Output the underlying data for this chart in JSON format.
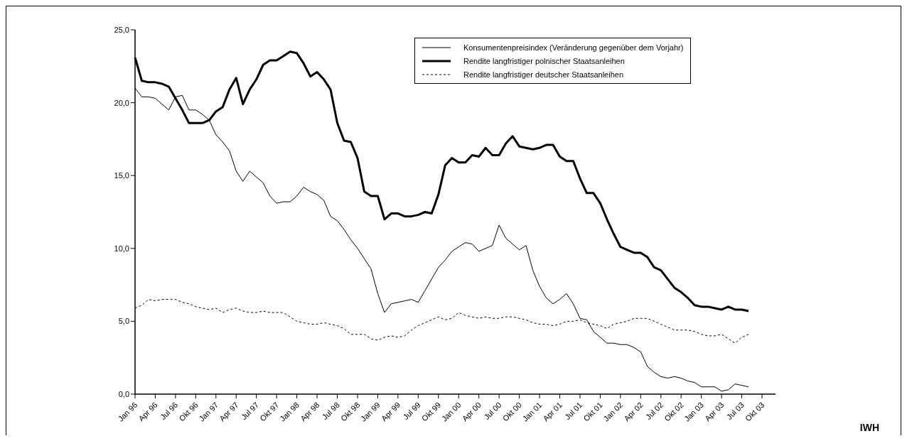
{
  "chart_data": {
    "type": "line",
    "categories": [
      "Jan 96",
      null,
      null,
      "Apr 96",
      null,
      null,
      "Jul 96",
      null,
      null,
      "Okt 96",
      null,
      null,
      "Jan 97",
      null,
      null,
      "Apr 97",
      null,
      null,
      "Jul 97",
      null,
      null,
      "Okt 97",
      null,
      null,
      "Jan 98",
      null,
      null,
      "Apr 98",
      null,
      null,
      "Jul 98",
      null,
      null,
      "Okt 98",
      null,
      null,
      "Jan 99",
      null,
      null,
      "Apr 99",
      null,
      null,
      "Jul 99",
      null,
      null,
      "Okt 99",
      null,
      null,
      "Jan 00",
      null,
      null,
      "Apr 00",
      null,
      null,
      "Jul 00",
      null,
      null,
      "Okt 00",
      null,
      null,
      "Jan 01",
      null,
      null,
      "Apr 01",
      null,
      null,
      "Jul 01",
      null,
      null,
      "Okt 01",
      null,
      null,
      "Jan 02",
      null,
      null,
      "Apr 02",
      null,
      null,
      "Jul 02",
      null,
      null,
      "Okt 02",
      null,
      null,
      "Jan 03",
      null,
      null,
      "Apr 03",
      null,
      null,
      "Jul 03",
      null,
      null,
      "Okt 03",
      null,
      null
    ],
    "series": [
      {
        "name": "Konsumentenpreisindex (Veränderung gegenüber dem Vorjahr)",
        "color": "#000000",
        "line_style": "solid",
        "values": [
          21.0,
          20.4,
          20.4,
          20.3,
          19.9,
          19.5,
          20.4,
          20.5,
          19.5,
          19.5,
          19.2,
          18.8,
          17.8,
          17.3,
          16.7,
          15.3,
          14.6,
          15.3,
          14.9,
          14.5,
          13.6,
          13.1,
          13.2,
          13.2,
          13.6,
          14.2,
          13.9,
          13.7,
          13.3,
          12.2,
          11.9,
          11.3,
          10.6,
          10.0,
          9.3,
          8.6,
          6.9,
          5.6,
          6.2,
          6.3,
          6.4,
          6.5,
          6.3,
          7.1,
          7.9,
          8.7,
          9.2,
          9.8,
          10.1,
          10.4,
          10.3,
          9.8,
          10.0,
          10.2,
          11.6,
          10.7,
          10.3,
          9.9,
          10.2,
          8.5,
          7.4,
          6.6,
          6.2,
          6.5,
          6.9,
          6.2,
          5.2,
          5.1,
          4.3,
          3.9,
          3.5,
          3.5,
          3.4,
          3.4,
          3.2,
          2.9,
          1.9,
          1.5,
          1.2,
          1.1,
          1.2,
          1.1,
          0.9,
          0.8,
          0.5,
          0.5,
          0.5,
          0.2,
          0.3,
          0.7,
          0.6,
          0.5,
          null,
          null,
          null,
          null
        ]
      },
      {
        "name": "Rendite langfristiger polnischer Staatsanleihen",
        "color": "#000000",
        "line_style": "solid",
        "values": [
          23.1,
          21.5,
          21.4,
          21.4,
          21.3,
          21.1,
          20.3,
          19.5,
          18.6,
          18.6,
          18.6,
          18.8,
          19.4,
          19.7,
          20.9,
          21.7,
          19.9,
          20.9,
          21.6,
          22.6,
          22.9,
          22.9,
          23.2,
          23.5,
          23.4,
          22.7,
          21.8,
          22.1,
          21.6,
          20.9,
          18.6,
          17.4,
          17.3,
          16.2,
          13.9,
          13.6,
          13.6,
          12.0,
          12.4,
          12.4,
          12.2,
          12.2,
          12.3,
          12.5,
          12.4,
          13.7,
          15.7,
          16.2,
          15.9,
          15.9,
          16.4,
          16.3,
          16.9,
          16.4,
          16.4,
          17.2,
          17.7,
          17.0,
          16.9,
          16.8,
          16.9,
          17.1,
          17.1,
          16.3,
          16.0,
          16.0,
          14.8,
          13.8,
          13.8,
          13.1,
          12.0,
          11.0,
          10.1,
          9.9,
          9.7,
          9.7,
          9.4,
          8.7,
          8.5,
          7.9,
          7.3,
          7.0,
          6.6,
          6.1,
          6.0,
          6.0,
          5.9,
          5.8,
          6.0,
          5.8,
          5.8,
          5.7,
          null,
          null,
          null,
          null
        ]
      },
      {
        "name": "Rendite langfristiger deutscher Staatsanleihen",
        "color": "#000000",
        "line_style": "dashed",
        "values": [
          5.9,
          6.1,
          6.5,
          6.4,
          6.5,
          6.5,
          6.5,
          6.3,
          6.2,
          6.0,
          5.9,
          5.8,
          5.9,
          5.6,
          5.8,
          5.9,
          5.7,
          5.6,
          5.6,
          5.7,
          5.6,
          5.6,
          5.6,
          5.3,
          5.0,
          4.9,
          4.8,
          4.8,
          4.9,
          4.8,
          4.7,
          4.5,
          4.1,
          4.1,
          4.1,
          3.8,
          3.7,
          3.9,
          4.0,
          3.9,
          4.0,
          4.4,
          4.7,
          4.9,
          5.1,
          5.3,
          5.1,
          5.2,
          5.6,
          5.4,
          5.3,
          5.2,
          5.3,
          5.2,
          5.2,
          5.3,
          5.3,
          5.2,
          5.1,
          4.9,
          4.8,
          4.8,
          4.7,
          4.8,
          5.0,
          5.0,
          5.1,
          4.9,
          4.8,
          4.7,
          4.5,
          4.8,
          4.9,
          5.0,
          5.2,
          5.2,
          5.2,
          5.0,
          4.8,
          4.6,
          4.4,
          4.4,
          4.4,
          4.3,
          4.1,
          4.0,
          4.0,
          4.1,
          3.8,
          3.5,
          3.9,
          4.1,
          null,
          null,
          null,
          null
        ]
      }
    ],
    "ylim": [
      0,
      25
    ],
    "yticks": [
      {
        "value": 0,
        "label": "0,0"
      },
      {
        "value": 5,
        "label": "5,0"
      },
      {
        "value": 10,
        "label": "10,0"
      },
      {
        "value": 15,
        "label": "15,0"
      },
      {
        "value": 20,
        "label": "20,0"
      },
      {
        "value": 25,
        "label": "25,0"
      }
    ],
    "grid": false,
    "legend": "top right",
    "marker": "none",
    "annotations": [
      "IWH"
    ]
  }
}
